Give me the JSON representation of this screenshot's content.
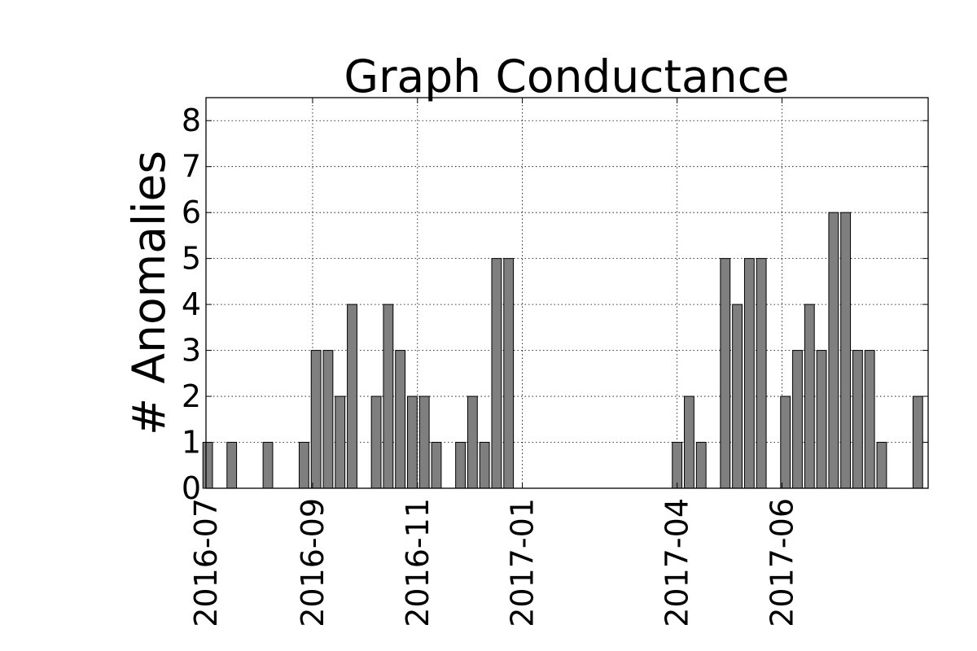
{
  "chart_data": {
    "type": "bar",
    "title": "Graph Conductance",
    "xlabel": "",
    "ylabel": "# Anomalies",
    "ylim": [
      0,
      8.5
    ],
    "y_ticks": [
      0,
      1,
      2,
      3,
      4,
      5,
      6,
      7,
      8
    ],
    "x_ticks": [
      "2016-07",
      "2016-09",
      "2016-11",
      "2017-01",
      "2017-04",
      "2017-06"
    ],
    "grid": true,
    "bar_color": "#7f7f7f",
    "categories": [
      "2016-07-02",
      "2016-07-09",
      "2016-07-16",
      "2016-07-23",
      "2016-07-30",
      "2016-08-06",
      "2016-08-13",
      "2016-08-20",
      "2016-08-27",
      "2016-09-03",
      "2016-09-10",
      "2016-09-17",
      "2016-09-24",
      "2016-10-01",
      "2016-10-08",
      "2016-10-15",
      "2016-10-22",
      "2016-10-29",
      "2016-11-05",
      "2016-11-12",
      "2016-11-19",
      "2016-11-26",
      "2016-12-03",
      "2016-12-10",
      "2016-12-17",
      "2016-12-24",
      "2016-12-31",
      "2017-01-07",
      "2017-01-14",
      "2017-01-21",
      "2017-01-28",
      "2017-02-04",
      "2017-02-11",
      "2017-02-18",
      "2017-02-25",
      "2017-03-04",
      "2017-03-11",
      "2017-03-18",
      "2017-03-25",
      "2017-04-01",
      "2017-04-08",
      "2017-04-15",
      "2017-04-22",
      "2017-04-29",
      "2017-05-06",
      "2017-05-13",
      "2017-05-20",
      "2017-05-27",
      "2017-06-03",
      "2017-06-10",
      "2017-06-17",
      "2017-06-24",
      "2017-07-01",
      "2017-07-08",
      "2017-07-15",
      "2017-07-22",
      "2017-07-29",
      "2017-08-05",
      "2017-08-12",
      "2017-08-19"
    ],
    "values": [
      1,
      0,
      1,
      0,
      0,
      1,
      0,
      0,
      1,
      3,
      3,
      2,
      4,
      0,
      2,
      4,
      3,
      2,
      2,
      1,
      0,
      1,
      2,
      1,
      5,
      5,
      0,
      0,
      0,
      0,
      0,
      0,
      0,
      0,
      0,
      0,
      0,
      0,
      0,
      1,
      2,
      1,
      0,
      5,
      4,
      5,
      5,
      0,
      2,
      3,
      4,
      3,
      6,
      6,
      3,
      3,
      1,
      0,
      0,
      2
    ]
  }
}
